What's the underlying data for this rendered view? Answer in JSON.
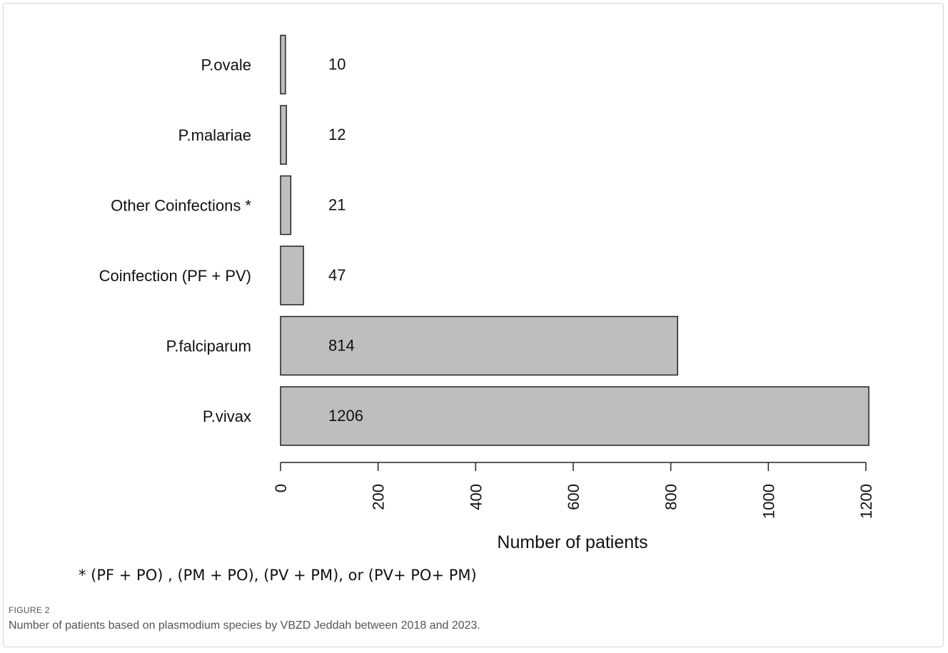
{
  "chart_data": {
    "type": "bar",
    "orientation": "horizontal",
    "categories": [
      "P.vivax",
      "P.falciparum",
      "Coinfection (PF + PV)",
      "Other Coinfections *",
      "P.malariae",
      "P.ovale"
    ],
    "values": [
      1206,
      814,
      47,
      21,
      12,
      10
    ],
    "data_labels": [
      "1206",
      "814",
      "47",
      "21",
      "12",
      "10"
    ],
    "xlabel": "Number of patients",
    "ylabel": "",
    "xlim": [
      0,
      1200
    ],
    "xticks": [
      0,
      200,
      400,
      600,
      800,
      1000,
      1200
    ],
    "tick_labels": [
      "0",
      "200",
      "400",
      "600",
      "800",
      "1000",
      "1200"
    ],
    "bar_color": "#bebebe",
    "edge_color": "#222222",
    "grid": false,
    "legend": "none"
  },
  "footnote": "* (PF + PO) , (PM + PO), (PV + PM), or (PV+ PO+ PM)",
  "figure_label": "FIGURE 2",
  "caption": "Number of patients based on plasmodium species by VBZD Jeddah between 2018 and 2023."
}
